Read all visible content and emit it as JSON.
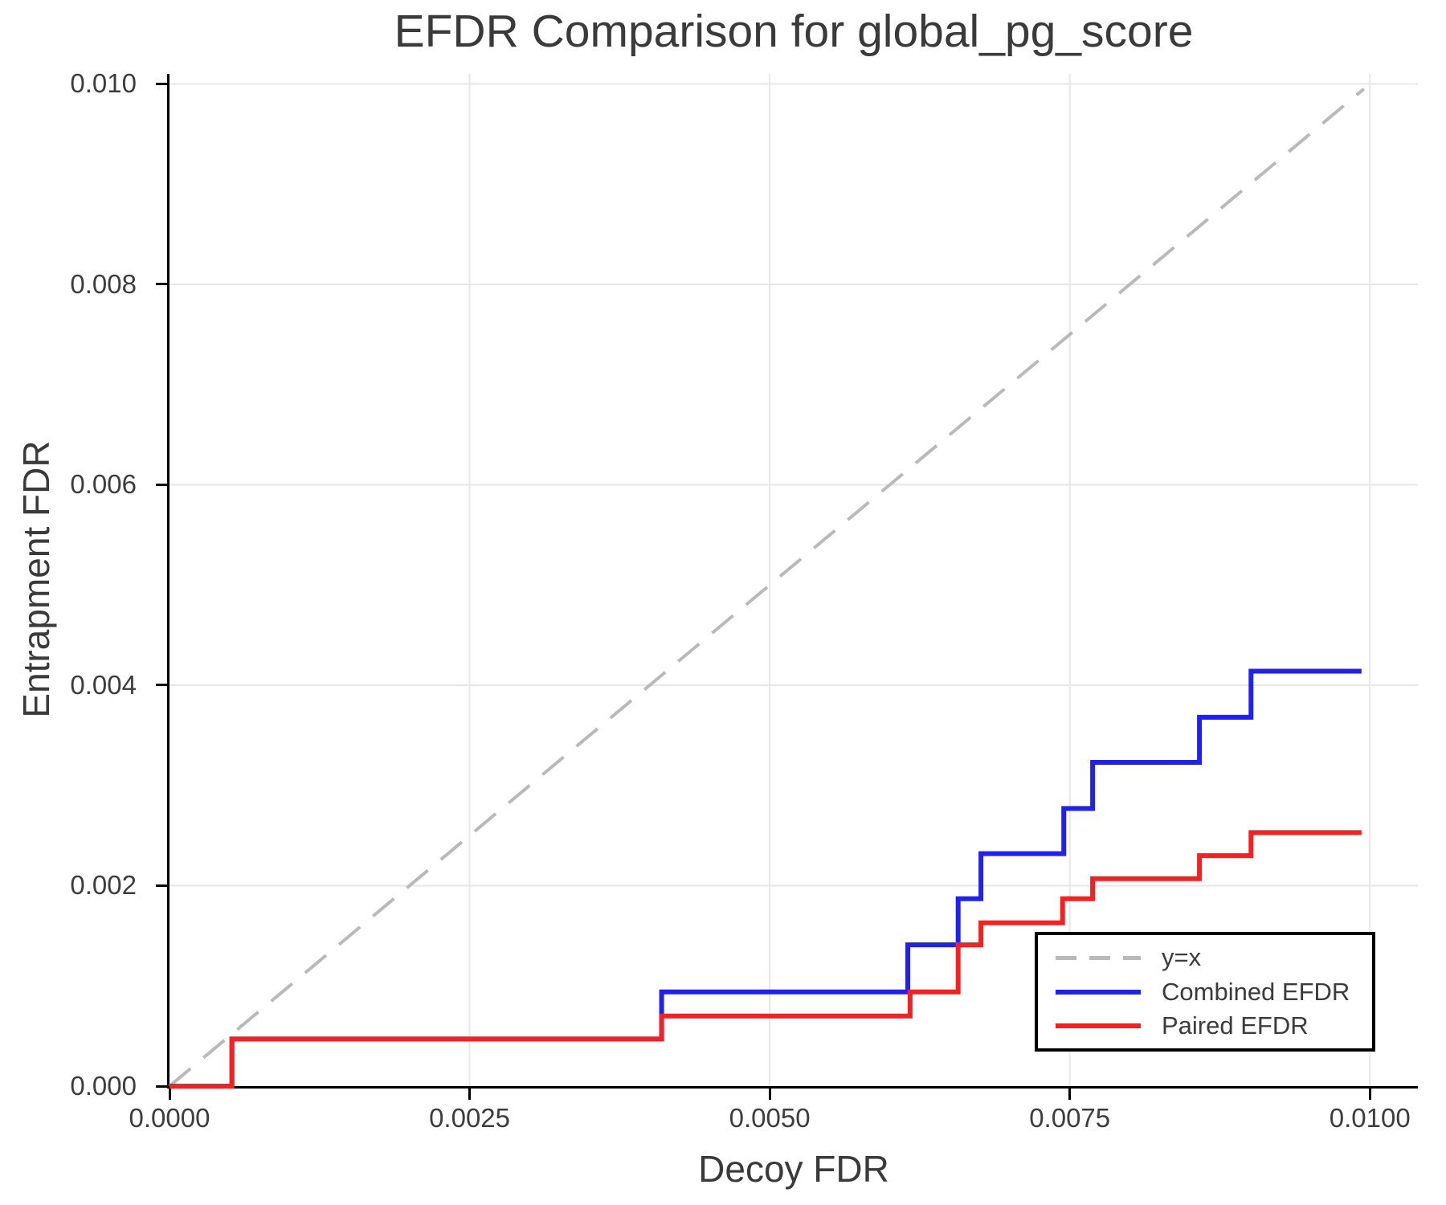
{
  "chart_data": {
    "type": "line",
    "subtype": "step",
    "title": "EFDR Comparison for global_pg_score",
    "xlabel": "Decoy FDR",
    "ylabel": "Entrapment FDR",
    "xlim": [
      0,
      0.0104
    ],
    "ylim": [
      0,
      0.0101
    ],
    "grid": true,
    "grid_color": "#e7e7e7",
    "axis_color": "#000000",
    "text_color": "#3a3a3a",
    "x_ticks": [
      0.0,
      0.0025,
      0.005,
      0.0075,
      0.01
    ],
    "x_tick_labels": [
      "0.0000",
      "0.0025",
      "0.0050",
      "0.0075",
      "0.0100"
    ],
    "y_ticks": [
      0.0,
      0.002,
      0.004,
      0.006,
      0.008,
      0.01
    ],
    "y_tick_labels": [
      "0.000",
      "0.002",
      "0.004",
      "0.006",
      "0.008",
      "0.010"
    ],
    "legend_position": "lower right",
    "series": [
      {
        "name": "y=x",
        "style": "dashed",
        "color": "#b9b9b9",
        "points": [
          [
            0,
            0
          ],
          [
            0.00995,
            0.00995
          ]
        ]
      },
      {
        "name": "Combined EFDR",
        "style": "step",
        "color": "#2020f0",
        "start": [
          0,
          0
        ],
        "step_x": [
          0.00052,
          0.0041,
          0.00615,
          0.00657,
          0.00676,
          0.00745,
          0.00769,
          0.00858,
          0.00901
        ],
        "levels": [
          0.00047,
          0.00094,
          0.00141,
          0.00187,
          0.00232,
          0.00277,
          0.00323,
          0.00368,
          0.00414
        ],
        "x_end": 0.00993
      },
      {
        "name": "Paired EFDR",
        "style": "step",
        "color": "#f52020",
        "start": [
          0,
          0
        ],
        "step_x": [
          0.00052,
          0.0041,
          0.00617,
          0.00657,
          0.00676,
          0.00744,
          0.00769,
          0.00858,
          0.00901
        ],
        "levels": [
          0.00047,
          0.0007,
          0.00094,
          0.00141,
          0.00163,
          0.00187,
          0.00207,
          0.0023,
          0.00253
        ],
        "x_end": 0.00993
      }
    ]
  }
}
